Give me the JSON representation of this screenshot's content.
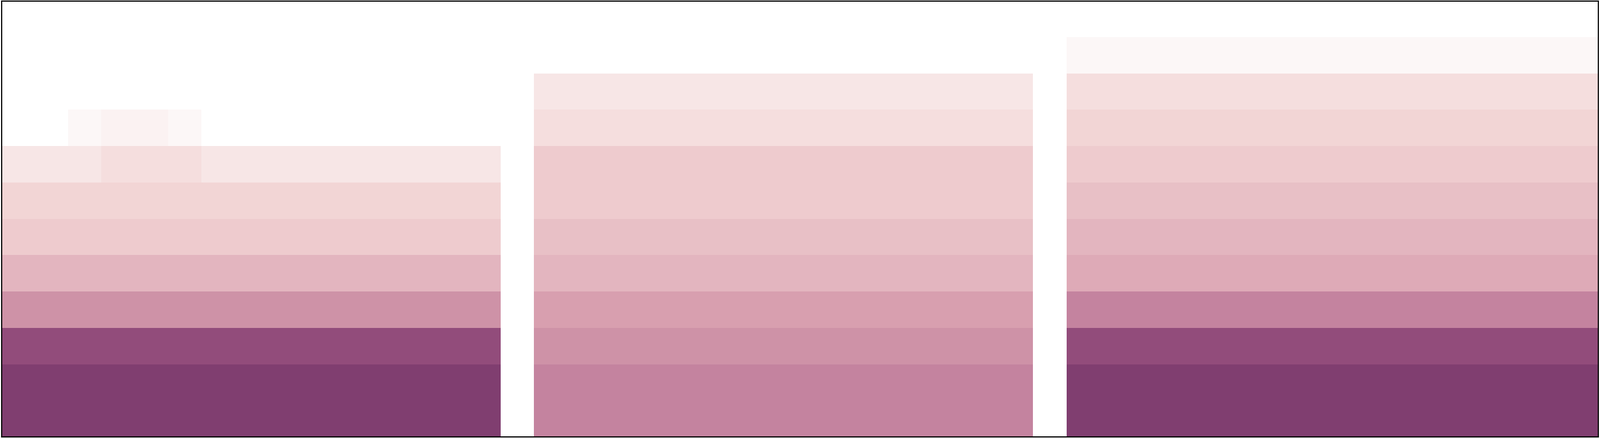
{
  "chart_data": {
    "type": "heatmap",
    "tick_labels": false,
    "zlim": [
      0,
      1
    ],
    "cells": [
      [
        0.85,
        0.85,
        0.85,
        0.85,
        0.85,
        0.85,
        0.85,
        0.85,
        0.85,
        0.85,
        0.85,
        0.85,
        0.85,
        0.85,
        0.85,
        0,
        0.6,
        0.6,
        0.6,
        0.6,
        0.6,
        0.6,
        0.6,
        0.6,
        0.6,
        0.6,
        0.6,
        0.6,
        0.6,
        0.6,
        0.6,
        0,
        0.85,
        0.85,
        0.85,
        0.85,
        0.85,
        0.85,
        0.85,
        0.85,
        0.85,
        0.85,
        0.85,
        0.85,
        0.85,
        0.85,
        0.85,
        0.85
      ],
      [
        0.85,
        0.85,
        0.85,
        0.85,
        0.85,
        0.85,
        0.85,
        0.85,
        0.85,
        0.85,
        0.85,
        0.85,
        0.85,
        0.85,
        0.85,
        0,
        0.6,
        0.6,
        0.6,
        0.6,
        0.6,
        0.6,
        0.6,
        0.6,
        0.6,
        0.6,
        0.6,
        0.6,
        0.6,
        0.6,
        0.6,
        0,
        0.85,
        0.85,
        0.85,
        0.85,
        0.85,
        0.85,
        0.85,
        0.85,
        0.85,
        0.85,
        0.85,
        0.85,
        0.85,
        0.85,
        0.85,
        0.85
      ],
      [
        0.8,
        0.8,
        0.8,
        0.8,
        0.8,
        0.8,
        0.8,
        0.8,
        0.8,
        0.8,
        0.8,
        0.8,
        0.8,
        0.8,
        0.8,
        0,
        0.55,
        0.55,
        0.55,
        0.55,
        0.55,
        0.55,
        0.55,
        0.55,
        0.55,
        0.55,
        0.55,
        0.55,
        0.55,
        0.55,
        0.55,
        0,
        0.8,
        0.8,
        0.8,
        0.8,
        0.8,
        0.8,
        0.8,
        0.8,
        0.8,
        0.8,
        0.8,
        0.8,
        0.8,
        0.8,
        0.8,
        0.8
      ],
      [
        0.55,
        0.55,
        0.55,
        0.55,
        0.55,
        0.55,
        0.55,
        0.55,
        0.55,
        0.55,
        0.55,
        0.55,
        0.55,
        0.55,
        0.55,
        0,
        0.5,
        0.5,
        0.5,
        0.5,
        0.5,
        0.5,
        0.5,
        0.5,
        0.5,
        0.5,
        0.5,
        0.5,
        0.5,
        0.5,
        0.5,
        0,
        0.6,
        0.6,
        0.6,
        0.6,
        0.6,
        0.6,
        0.6,
        0.6,
        0.6,
        0.6,
        0.6,
        0.6,
        0.6,
        0.6,
        0.6,
        0.6
      ],
      [
        0.4,
        0.4,
        0.4,
        0.4,
        0.4,
        0.4,
        0.4,
        0.4,
        0.4,
        0.4,
        0.4,
        0.4,
        0.4,
        0.4,
        0.4,
        0,
        0.4,
        0.4,
        0.4,
        0.4,
        0.4,
        0.4,
        0.4,
        0.4,
        0.4,
        0.4,
        0.4,
        0.4,
        0.4,
        0.4,
        0.4,
        0,
        0.45,
        0.45,
        0.45,
        0.45,
        0.45,
        0.45,
        0.45,
        0.45,
        0.45,
        0.45,
        0.45,
        0.45,
        0.45,
        0.45,
        0.45,
        0.45
      ],
      [
        0.3,
        0.3,
        0.3,
        0.3,
        0.3,
        0.3,
        0.3,
        0.3,
        0.3,
        0.3,
        0.3,
        0.3,
        0.3,
        0.3,
        0.3,
        0,
        0.35,
        0.35,
        0.35,
        0.35,
        0.35,
        0.35,
        0.35,
        0.35,
        0.35,
        0.35,
        0.35,
        0.35,
        0.35,
        0.35,
        0.35,
        0,
        0.4,
        0.4,
        0.4,
        0.4,
        0.4,
        0.4,
        0.4,
        0.4,
        0.4,
        0.4,
        0.4,
        0.4,
        0.4,
        0.4,
        0.4,
        0.4
      ],
      [
        0.25,
        0.25,
        0.25,
        0.25,
        0.25,
        0.25,
        0.25,
        0.25,
        0.25,
        0.25,
        0.25,
        0.25,
        0.25,
        0.25,
        0.25,
        0,
        0.3,
        0.3,
        0.3,
        0.3,
        0.3,
        0.3,
        0.3,
        0.3,
        0.3,
        0.3,
        0.3,
        0.3,
        0.3,
        0.3,
        0.3,
        0,
        0.35,
        0.35,
        0.35,
        0.35,
        0.35,
        0.35,
        0.35,
        0.35,
        0.35,
        0.35,
        0.35,
        0.35,
        0.35,
        0.35,
        0.35,
        0.35
      ],
      [
        0.15,
        0.15,
        0.15,
        0.2,
        0.2,
        0.2,
        0.15,
        0.15,
        0.15,
        0.15,
        0.15,
        0.15,
        0.15,
        0.15,
        0.15,
        0,
        0.3,
        0.3,
        0.3,
        0.3,
        0.3,
        0.3,
        0.3,
        0.3,
        0.3,
        0.3,
        0.3,
        0.3,
        0.3,
        0.3,
        0.3,
        0,
        0.3,
        0.3,
        0.3,
        0.3,
        0.3,
        0.3,
        0.3,
        0.3,
        0.3,
        0.3,
        0.3,
        0.3,
        0.3,
        0.3,
        0.3,
        0.3
      ],
      [
        0,
        0,
        0.05,
        0.08,
        0.08,
        0.05,
        0,
        0,
        0,
        0,
        0,
        0,
        0,
        0,
        0,
        0,
        0.2,
        0.2,
        0.2,
        0.2,
        0.2,
        0.2,
        0.2,
        0.2,
        0.2,
        0.2,
        0.2,
        0.2,
        0.2,
        0.2,
        0.2,
        0,
        0.25,
        0.25,
        0.25,
        0.25,
        0.25,
        0.25,
        0.25,
        0.25,
        0.25,
        0.25,
        0.25,
        0.25,
        0.25,
        0.25,
        0.25,
        0.25
      ],
      [
        0,
        0,
        0,
        0,
        0,
        0,
        0,
        0,
        0,
        0,
        0,
        0,
        0,
        0,
        0,
        0,
        0.15,
        0.15,
        0.15,
        0.15,
        0.15,
        0.15,
        0.15,
        0.15,
        0.15,
        0.15,
        0.15,
        0.15,
        0.15,
        0.15,
        0.15,
        0,
        0.2,
        0.2,
        0.2,
        0.2,
        0.2,
        0.2,
        0.2,
        0.2,
        0.2,
        0.2,
        0.2,
        0.2,
        0.2,
        0.2,
        0.2,
        0.2
      ],
      [
        0,
        0,
        0,
        0,
        0,
        0,
        0,
        0,
        0,
        0,
        0,
        0,
        0,
        0,
        0,
        0,
        0,
        0,
        0,
        0,
        0,
        0,
        0,
        0,
        0,
        0,
        0,
        0,
        0,
        0,
        0,
        0,
        0.05,
        0.05,
        0.05,
        0.05,
        0.05,
        0.05,
        0.05,
        0.05,
        0.05,
        0.05,
        0.05,
        0.05,
        0.05,
        0.05,
        0.05,
        0.05
      ],
      [
        0,
        0,
        0,
        0,
        0,
        0,
        0,
        0,
        0,
        0,
        0,
        0,
        0,
        0,
        0,
        0,
        0,
        0,
        0,
        0,
        0,
        0,
        0,
        0,
        0,
        0,
        0,
        0,
        0,
        0,
        0,
        0,
        0,
        0,
        0,
        0,
        0,
        0,
        0,
        0,
        0,
        0,
        0,
        0,
        0,
        0,
        0,
        0
      ]
    ]
  }
}
